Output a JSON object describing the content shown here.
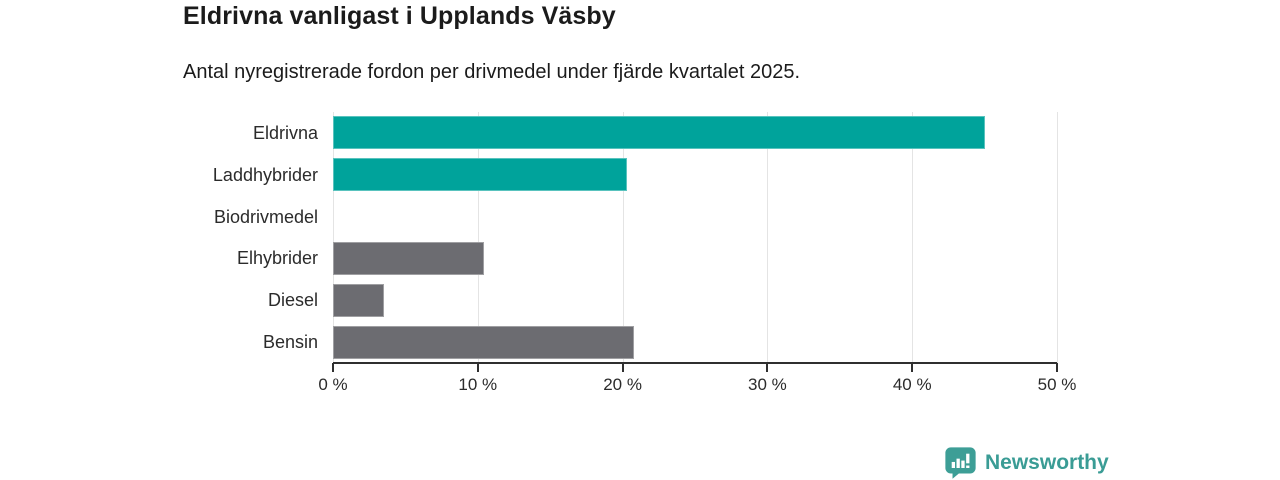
{
  "header": {
    "title": "Eldrivna vanligast i Upplands Väsby",
    "subtitle": "Antal nyregistrerade fordon per drivmedel under fjärde kvartalet 2025."
  },
  "chart_data": {
    "type": "bar",
    "orientation": "horizontal",
    "title": "Eldrivna vanligast i Upplands Väsby",
    "subtitle": "Antal nyregistrerade fordon per drivmedel under fjärde kvartalet 2025.",
    "categories": [
      "Eldrivna",
      "Laddhybrider",
      "Biodrivmedel",
      "Elhybrider",
      "Diesel",
      "Bensin"
    ],
    "values": [
      45.0,
      20.3,
      0,
      10.4,
      3.5,
      20.8
    ],
    "unit": "%",
    "bar_colors": [
      "#00a39b",
      "#00a39b",
      "#00a39b",
      "#6c6c71",
      "#6c6c71",
      "#6c6c71"
    ],
    "xlim": [
      0,
      50
    ],
    "xticks": [
      0,
      10,
      20,
      30,
      40,
      50
    ],
    "xtick_labels": [
      "0 %",
      "10 %",
      "20 %",
      "30 %",
      "40 %",
      "50 %"
    ],
    "grid": "vertical-gridlines-on",
    "legend": "none"
  },
  "colors": {
    "teal": "#00a39b",
    "gray": "#6c6c71",
    "gridline": "#e4e4e4",
    "axis": "#2f2f2f",
    "text": "#1b1b1b",
    "brand": "#3a9c95"
  },
  "footer": {
    "brand": "Newsworthy"
  }
}
